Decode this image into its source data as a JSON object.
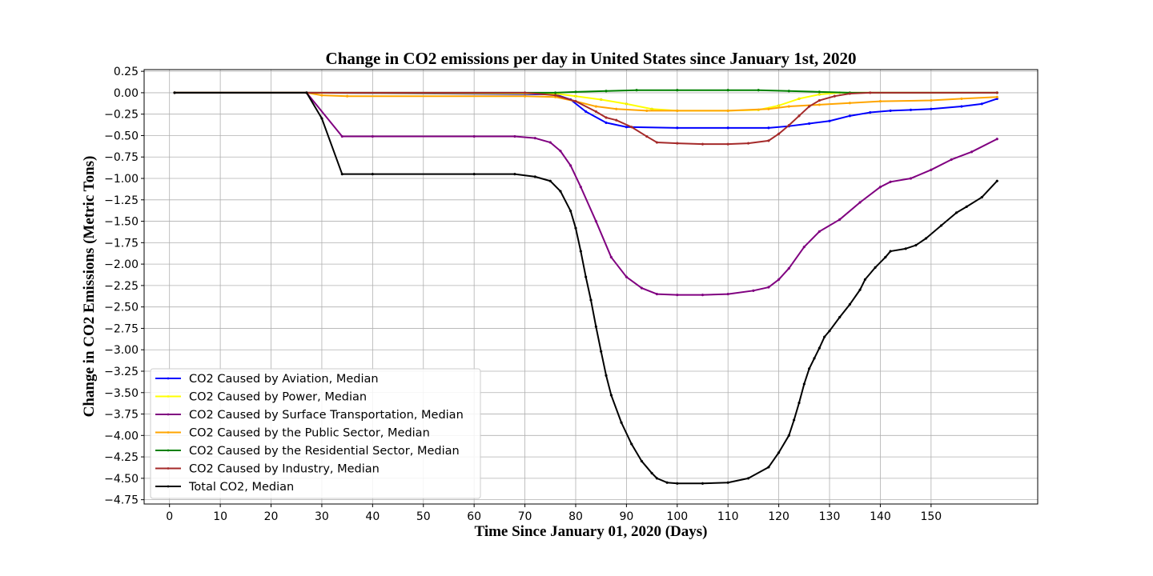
{
  "chart_data": {
    "type": "line",
    "title": "Change in CO2 emissions per day in United States since January 1st, 2020",
    "xlabel": "Time Since January 01, 2020 (Days)",
    "ylabel": "Change in CO2 Emissions (Metric Tons)",
    "xlim": [
      -5,
      171
    ],
    "ylim": [
      -4.8,
      0.27
    ],
    "x_ticks": [
      0,
      10,
      20,
      30,
      40,
      50,
      60,
      70,
      80,
      90,
      100,
      110,
      120,
      130,
      140,
      150
    ],
    "x_tick_labels": [
      "0",
      "10",
      "20",
      "30",
      "40",
      "50",
      "60",
      "70",
      "80",
      "90",
      "100",
      "110",
      "120",
      "130",
      "140",
      "150"
    ],
    "y_ticks": [
      0.25,
      0,
      -0.25,
      -0.5,
      -0.75,
      -1,
      -1.25,
      -1.5,
      -1.75,
      -2,
      -2.25,
      -2.5,
      -2.75,
      -3,
      -3.25,
      -3.5,
      -3.75,
      -4,
      -4.25,
      -4.5,
      -4.75
    ],
    "y_tick_labels": [
      "0.25",
      "0.00",
      "−0.25",
      "−0.50",
      "−0.75",
      "−1.00",
      "−1.25",
      "−1.50",
      "−1.75",
      "−2.00",
      "−2.25",
      "−2.50",
      "−2.75",
      "−3.00",
      "−3.25",
      "−3.50",
      "−3.75",
      "−4.00",
      "−4.25",
      "−4.50",
      "−4.75"
    ],
    "grid": true,
    "legend_position": "lower-left",
    "series": [
      {
        "name": "CO2 Caused by Aviation, Median",
        "color": "#0000ff",
        "points": [
          [
            1,
            0
          ],
          [
            27,
            0
          ],
          [
            76,
            -0.02
          ],
          [
            79,
            -0.08
          ],
          [
            82,
            -0.22
          ],
          [
            86,
            -0.35
          ],
          [
            90,
            -0.4
          ],
          [
            100,
            -0.41
          ],
          [
            110,
            -0.41
          ],
          [
            118,
            -0.41
          ],
          [
            122,
            -0.39
          ],
          [
            126,
            -0.36
          ],
          [
            130,
            -0.33
          ],
          [
            134,
            -0.27
          ],
          [
            138,
            -0.23
          ],
          [
            142,
            -0.21
          ],
          [
            146,
            -0.2
          ],
          [
            150,
            -0.19
          ],
          [
            156,
            -0.16
          ],
          [
            160,
            -0.13
          ],
          [
            163,
            -0.07
          ]
        ]
      },
      {
        "name": "CO2 Caused by Power, Median",
        "color": "#ffff00",
        "points": [
          [
            1,
            0
          ],
          [
            27,
            0
          ],
          [
            76,
            -0.01
          ],
          [
            80,
            -0.04
          ],
          [
            85,
            -0.08
          ],
          [
            90,
            -0.13
          ],
          [
            95,
            -0.19
          ],
          [
            100,
            -0.21
          ],
          [
            110,
            -0.21
          ],
          [
            116,
            -0.2
          ],
          [
            120,
            -0.15
          ],
          [
            124,
            -0.07
          ],
          [
            128,
            -0.02
          ],
          [
            132,
            0
          ],
          [
            163,
            0
          ]
        ]
      },
      {
        "name": "CO2 Caused by Surface Transportation, Median",
        "color": "#800080",
        "points": [
          [
            1,
            0
          ],
          [
            27,
            0
          ],
          [
            34,
            -0.51
          ],
          [
            40,
            -0.51
          ],
          [
            60,
            -0.51
          ],
          [
            68,
            -0.51
          ],
          [
            72,
            -0.53
          ],
          [
            75,
            -0.58
          ],
          [
            77,
            -0.68
          ],
          [
            79,
            -0.85
          ],
          [
            81,
            -1.1
          ],
          [
            84,
            -1.5
          ],
          [
            87,
            -1.92
          ],
          [
            90,
            -2.15
          ],
          [
            93,
            -2.28
          ],
          [
            96,
            -2.35
          ],
          [
            100,
            -2.36
          ],
          [
            105,
            -2.36
          ],
          [
            110,
            -2.35
          ],
          [
            115,
            -2.31
          ],
          [
            118,
            -2.27
          ],
          [
            120,
            -2.18
          ],
          [
            122,
            -2.05
          ],
          [
            125,
            -1.8
          ],
          [
            128,
            -1.62
          ],
          [
            132,
            -1.48
          ],
          [
            136,
            -1.28
          ],
          [
            140,
            -1.1
          ],
          [
            142,
            -1.04
          ],
          [
            146,
            -1.0
          ],
          [
            150,
            -0.9
          ],
          [
            154,
            -0.78
          ],
          [
            158,
            -0.69
          ],
          [
            163,
            -0.54
          ]
        ]
      },
      {
        "name": "CO2 Caused by the Public Sector, Median",
        "color": "#ffa500",
        "points": [
          [
            1,
            0
          ],
          [
            27,
            0
          ],
          [
            30,
            -0.03
          ],
          [
            35,
            -0.04
          ],
          [
            70,
            -0.04
          ],
          [
            76,
            -0.05
          ],
          [
            80,
            -0.1
          ],
          [
            84,
            -0.16
          ],
          [
            88,
            -0.19
          ],
          [
            94,
            -0.21
          ],
          [
            100,
            -0.21
          ],
          [
            110,
            -0.21
          ],
          [
            118,
            -0.19
          ],
          [
            122,
            -0.16
          ],
          [
            128,
            -0.14
          ],
          [
            134,
            -0.12
          ],
          [
            140,
            -0.1
          ],
          [
            150,
            -0.09
          ],
          [
            156,
            -0.07
          ],
          [
            163,
            -0.05
          ]
        ]
      },
      {
        "name": "CO2 Caused by the Residential Sector, Median",
        "color": "#008000",
        "points": [
          [
            1,
            0
          ],
          [
            27,
            0
          ],
          [
            76,
            0
          ],
          [
            80,
            0.01
          ],
          [
            86,
            0.02
          ],
          [
            92,
            0.03
          ],
          [
            100,
            0.03
          ],
          [
            110,
            0.03
          ],
          [
            116,
            0.03
          ],
          [
            122,
            0.02
          ],
          [
            128,
            0.01
          ],
          [
            134,
            0
          ],
          [
            163,
            0
          ]
        ]
      },
      {
        "name": "CO2 Caused by Industry, Median",
        "color": "#a52a2a",
        "points": [
          [
            1,
            0
          ],
          [
            27,
            0
          ],
          [
            70,
            0
          ],
          [
            76,
            -0.03
          ],
          [
            80,
            -0.1
          ],
          [
            84,
            -0.22
          ],
          [
            86,
            -0.29
          ],
          [
            88,
            -0.32
          ],
          [
            91,
            -0.4
          ],
          [
            94,
            -0.51
          ],
          [
            96,
            -0.58
          ],
          [
            100,
            -0.59
          ],
          [
            105,
            -0.6
          ],
          [
            110,
            -0.6
          ],
          [
            114,
            -0.59
          ],
          [
            118,
            -0.56
          ],
          [
            120,
            -0.48
          ],
          [
            122,
            -0.38
          ],
          [
            124,
            -0.27
          ],
          [
            126,
            -0.16
          ],
          [
            128,
            -0.09
          ],
          [
            131,
            -0.04
          ],
          [
            134,
            -0.01
          ],
          [
            138,
            0
          ],
          [
            163,
            0
          ]
        ]
      },
      {
        "name": "Total CO2, Median",
        "color": "#000000",
        "points": [
          [
            1,
            0
          ],
          [
            27,
            0
          ],
          [
            30,
            -0.3
          ],
          [
            34,
            -0.95
          ],
          [
            40,
            -0.95
          ],
          [
            60,
            -0.95
          ],
          [
            68,
            -0.95
          ],
          [
            72,
            -0.98
          ],
          [
            75,
            -1.03
          ],
          [
            77,
            -1.15
          ],
          [
            79,
            -1.38
          ],
          [
            80,
            -1.58
          ],
          [
            81,
            -1.85
          ],
          [
            82,
            -2.15
          ],
          [
            83,
            -2.42
          ],
          [
            84,
            -2.73
          ],
          [
            85,
            -3.02
          ],
          [
            86,
            -3.3
          ],
          [
            87,
            -3.53
          ],
          [
            89,
            -3.85
          ],
          [
            91,
            -4.1
          ],
          [
            93,
            -4.3
          ],
          [
            95,
            -4.44
          ],
          [
            96,
            -4.5
          ],
          [
            98,
            -4.55
          ],
          [
            100,
            -4.56
          ],
          [
            105,
            -4.56
          ],
          [
            110,
            -4.55
          ],
          [
            114,
            -4.5
          ],
          [
            118,
            -4.37
          ],
          [
            120,
            -4.2
          ],
          [
            122,
            -4.0
          ],
          [
            123,
            -3.82
          ],
          [
            124,
            -3.62
          ],
          [
            125,
            -3.4
          ],
          [
            126,
            -3.22
          ],
          [
            127,
            -3.1
          ],
          [
            128,
            -2.98
          ],
          [
            129,
            -2.85
          ],
          [
            130,
            -2.78
          ],
          [
            132,
            -2.62
          ],
          [
            134,
            -2.47
          ],
          [
            136,
            -2.3
          ],
          [
            137,
            -2.18
          ],
          [
            139,
            -2.04
          ],
          [
            141,
            -1.92
          ],
          [
            142,
            -1.85
          ],
          [
            145,
            -1.82
          ],
          [
            147,
            -1.78
          ],
          [
            149,
            -1.7
          ],
          [
            152,
            -1.55
          ],
          [
            155,
            -1.4
          ],
          [
            157,
            -1.33
          ],
          [
            160,
            -1.22
          ],
          [
            163,
            -1.03
          ]
        ]
      }
    ]
  }
}
